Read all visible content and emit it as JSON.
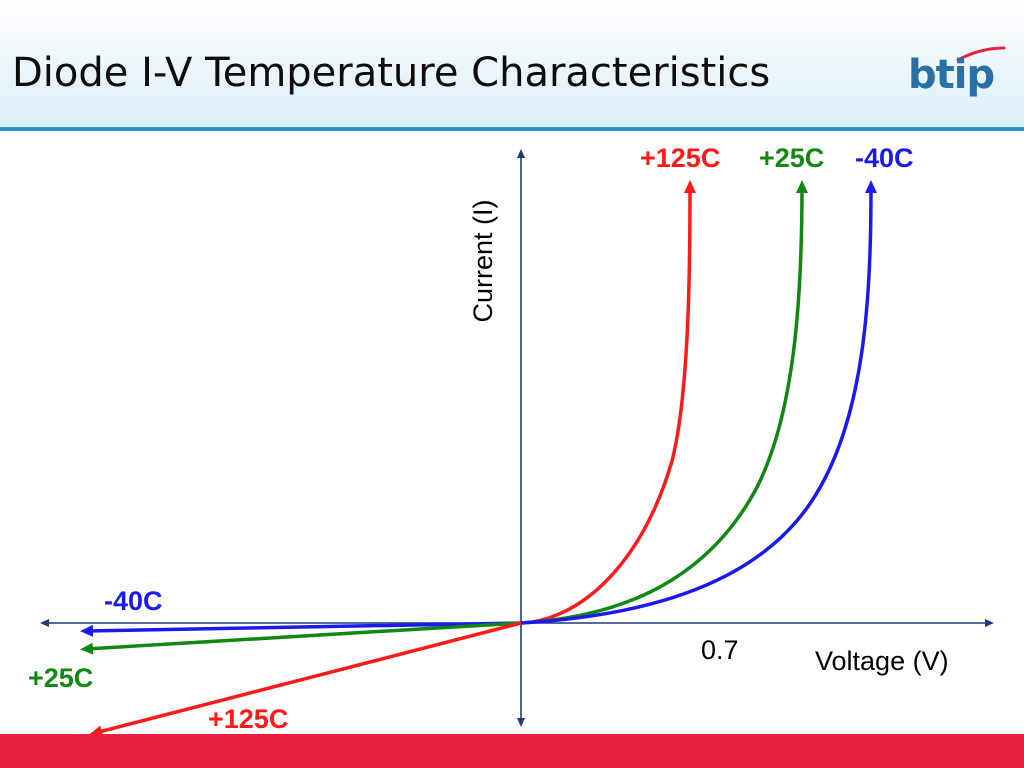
{
  "slide": {
    "title": "Diode I-V Temperature Characteristics",
    "logo_text": "btip",
    "colors": {
      "header_rule": "#2f8fc0",
      "footer": "#e8203e",
      "axis": "#1f3a7a",
      "logo": "#2a6fa6"
    }
  },
  "chart_data": {
    "type": "line",
    "title": "",
    "xlabel": "Voltage (V)",
    "ylabel": "Current (I)",
    "x_tick_labels": [
      "0.7"
    ],
    "grid": false,
    "series": [
      {
        "name": "+125C",
        "color": "#ff1a1a"
      },
      {
        "name": "+25C",
        "color": "#118811"
      },
      {
        "name": "-40C",
        "color": "#1a1aee"
      }
    ]
  }
}
